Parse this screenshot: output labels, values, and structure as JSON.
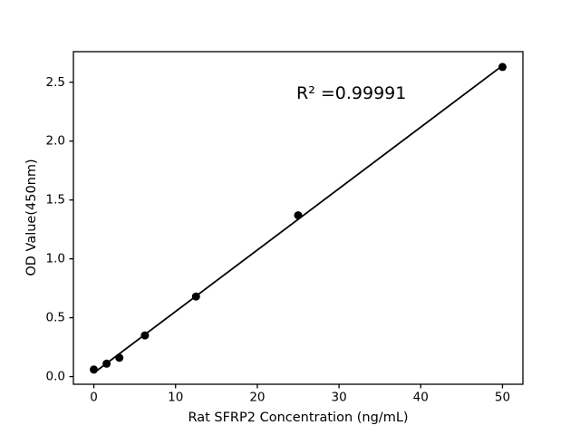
{
  "chart_data": {
    "type": "scatter",
    "title": "",
    "xlabel": "Rat SFRP2 Concentration (ng/mL)",
    "ylabel": "OD Value(450nm)",
    "x": [
      0,
      1.5625,
      3.125,
      6.25,
      12.5,
      25,
      50
    ],
    "y": [
      0.06,
      0.11,
      0.16,
      0.35,
      0.68,
      1.37,
      2.63
    ],
    "xlim": [
      -2.5,
      52.5
    ],
    "ylim": [
      -0.065,
      2.76
    ],
    "xticks": [
      0,
      10,
      20,
      30,
      40,
      50
    ],
    "xtick_labels": [
      "0",
      "10",
      "20",
      "30",
      "40",
      "50"
    ],
    "yticks": [
      0.0,
      0.5,
      1.0,
      1.5,
      2.0,
      2.5
    ],
    "ytick_labels": [
      "0.0",
      "0.5",
      "1.0",
      "1.5",
      "2.0",
      "2.5"
    ],
    "fit_line": {
      "slope": 0.0522,
      "intercept": 0.031,
      "x_start": 0,
      "x_end": 50
    },
    "annotation": {
      "text": "R² =0.99991"
    },
    "colors": {
      "marker": "#000000",
      "line": "#000000",
      "axis": "#000000",
      "background": "#ffffff"
    },
    "grid": false,
    "legend": null
  }
}
